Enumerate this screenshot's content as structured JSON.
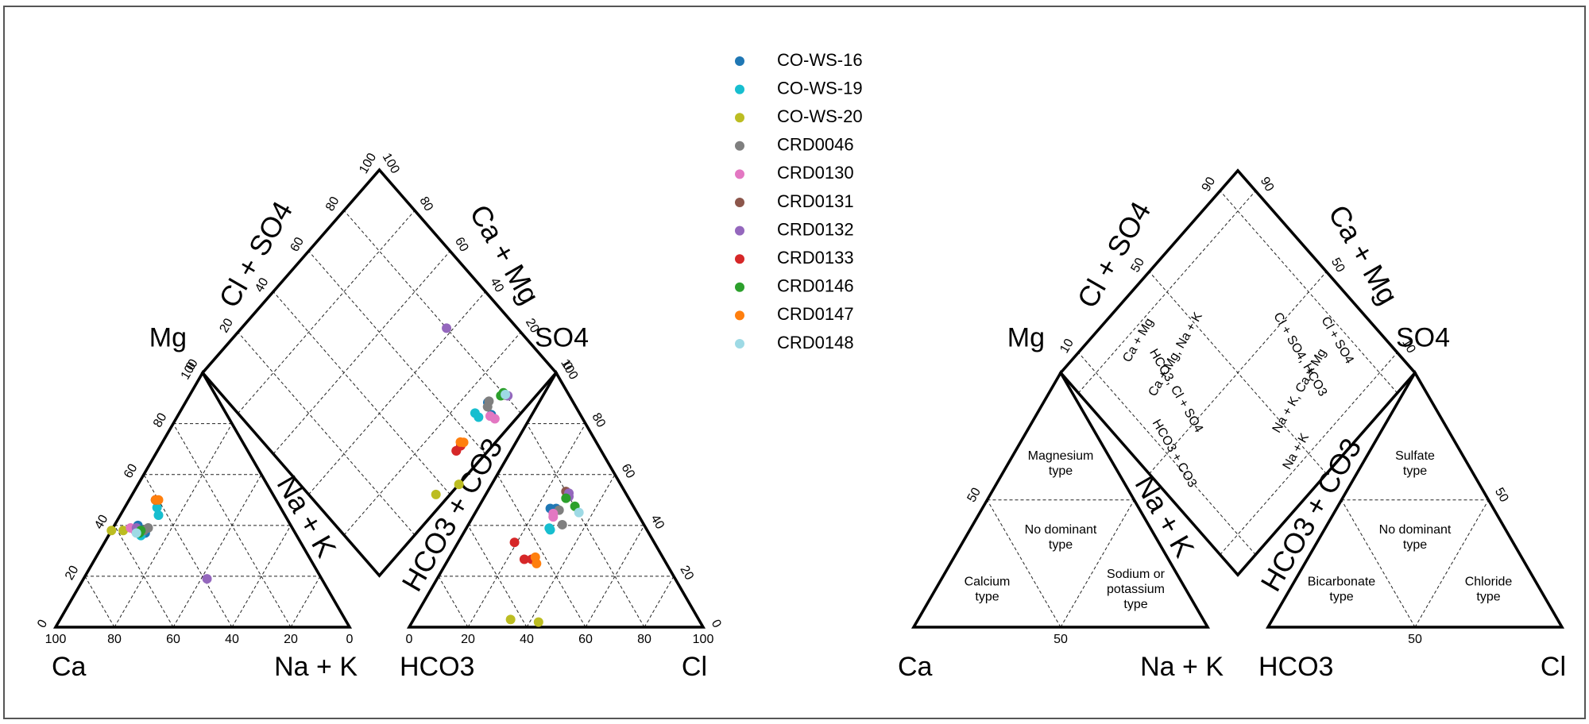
{
  "chart_data": [
    {
      "type": "scatter",
      "subtype": "piper-diagram",
      "title": "",
      "cation_triangle": {
        "corner_labels": {
          "left": "Ca",
          "right": "Na + K",
          "top": "Mg"
        },
        "side_label": "Na + K",
        "ticks_bottom": [
          "100",
          "80",
          "60",
          "40",
          "20",
          "0"
        ],
        "ticks_left": [
          "0",
          "20",
          "40",
          "60",
          "80",
          "100"
        ]
      },
      "anion_triangle": {
        "corner_labels": {
          "left": "HCO3",
          "right": "Cl",
          "top": "SO4"
        },
        "side_label": "HCO3 + CO3",
        "ticks_bottom": [
          "0",
          "20",
          "40",
          "60",
          "80",
          "100"
        ],
        "ticks_right": [
          "0",
          "20",
          "40",
          "60",
          "80",
          "100"
        ]
      },
      "diamond": {
        "left_label": "Cl + SO4",
        "right_label": "Ca + Mg",
        "ticks_left": [
          "0",
          "20",
          "40",
          "60",
          "80",
          "100"
        ],
        "ticks_right": [
          "0",
          "20",
          "40",
          "60",
          "80",
          "100"
        ]
      },
      "legend_placement": "top-center",
      "series": [
        {
          "name": "CO-WS-16",
          "color": "#1f77b4",
          "cations": [
            {
              "ca": 52,
              "mg": 40,
              "nak": 8
            },
            {
              "ca": 51,
              "mg": 37,
              "nak": 12
            }
          ],
          "anions": [
            {
              "hco3": 43,
              "so4": 70,
              "cl": 37
            },
            {
              "hco3": 40,
              "so4": 70,
              "cl": 40
            }
          ]
        },
        {
          "name": "CO-WS-19",
          "color": "#17becf",
          "cations": [
            {
              "ca": 42,
              "mg": 47,
              "nak": 11
            },
            {
              "ca": 43,
              "mg": 44,
              "nak": 13
            },
            {
              "ca": 53,
              "mg": 36,
              "nak": 11
            }
          ],
          "anions": [
            {
              "hco3": 49,
              "so4": 57,
              "cl": 43
            },
            {
              "hco3": 49,
              "so4": 58,
              "cl": 42
            }
          ]
        },
        {
          "name": "CO-WS-20",
          "color": "#bcbd22",
          "cations": [
            {
              "ca": 58,
              "mg": 38,
              "nak": 4
            },
            {
              "ca": 62,
              "mg": 38,
              "nak": 0
            }
          ],
          "anions": [
            {
              "hco3": 64,
              "so4": 3,
              "cl": 33
            },
            {
              "hco3": 55,
              "so4": 2,
              "cl": 43
            }
          ]
        },
        {
          "name": "CRD0046",
          "color": "#7f7f7f",
          "cations": [
            {
              "ca": 49,
              "mg": 39,
              "nak": 12
            },
            {
              "ca": 51,
              "mg": 38,
              "nak": 11
            }
          ],
          "anions": [
            {
              "hco3": 39,
              "so4": 69,
              "cl": 42
            },
            {
              "hco3": 40,
              "so4": 58,
              "cl": 46
            }
          ]
        },
        {
          "name": "CRD0130",
          "color": "#e377c2",
          "cations": [
            {
              "ca": 55,
              "mg": 39,
              "nak": 6
            },
            {
              "ca": 54,
              "mg": 38,
              "nak": 8
            }
          ],
          "anions": [
            {
              "hco3": 43,
              "so4": 67,
              "cl": 40
            },
            {
              "hco3": 44,
              "so4": 65,
              "cl": 41
            }
          ]
        },
        {
          "name": "CRD0131",
          "color": "#8c564b",
          "cations": [
            {
              "ca": 41,
              "mg": 50,
              "nak": 9
            }
          ],
          "anions": [
            {
              "hco3": 30,
              "so4": 80,
              "cl": 40
            }
          ]
        },
        {
          "name": "CRD0132",
          "color": "#9467bd",
          "cations": [
            {
              "ca": 53,
              "mg": 39,
              "nak": 8
            },
            {
              "ca": 39,
              "mg": 19,
              "nak": 42
            }
          ],
          "anions": [
            {
              "hco3": 29,
              "so4": 79,
              "cl": 42
            },
            {
              "hco3": 30,
              "so4": 77,
              "cl": 43
            }
          ]
        },
        {
          "name": "CRD0133",
          "color": "#d62728",
          "cations": [
            {
              "ca": 41,
              "mg": 50,
              "nak": 9
            }
          ],
          "anions": [
            {
              "hco3": 57,
              "so4": 40,
              "cl": 23
            },
            {
              "hco3": 57,
              "so4": 32,
              "cl": 31
            },
            {
              "hco3": 54,
              "so4": 32,
              "cl": 34
            }
          ]
        },
        {
          "name": "CRD0146",
          "color": "#2ca02c",
          "cations": [
            {
              "ca": 52,
              "mg": 38,
              "nak": 10
            },
            {
              "ca": 53,
              "mg": 37,
              "nak": 10
            }
          ],
          "anions": [
            {
              "hco3": 32,
              "so4": 76,
              "cl": 42
            },
            {
              "hco3": 28,
              "so4": 67,
              "cl": 46
            }
          ]
        },
        {
          "name": "CRD0147",
          "color": "#ff7f0e",
          "cations": [
            {
              "ca": 41,
              "mg": 50,
              "nak": 9
            },
            {
              "ca": 40,
              "mg": 50,
              "nak": 10
            }
          ],
          "anions": [
            {
              "hco3": 52,
              "so4": 33,
              "cl": 35
            },
            {
              "hco3": 53,
              "so4": 30,
              "cl": 37
            }
          ]
        },
        {
          "name": "CRD0148",
          "color": "#9edae5",
          "cations": [
            {
              "ca": 54,
              "mg": 37,
              "nak": 9
            }
          ],
          "anions": [
            {
              "hco3": 28,
              "so4": 64,
              "cl": 50
            }
          ]
        }
      ]
    },
    {
      "type": "diagram",
      "subtype": "piper-classification-template",
      "title": "",
      "corner_labels": {
        "cation_left": "Ca",
        "cation_right": "Na + K",
        "cation_top": "Mg",
        "anion_left": "HCO3",
        "anion_right": "Cl",
        "anion_top": "SO4"
      },
      "side_labels": {
        "cation": "Na + K",
        "anion": "HCO3 + CO3",
        "diamond_left": "Cl + SO4",
        "diamond_right": "Ca + Mg"
      },
      "ticks": {
        "cation_left_50": "50",
        "cation_bottom_50": "50",
        "anion_right_50": "50",
        "anion_bottom_50": "50",
        "diamond_left": [
          "10",
          "50",
          "90"
        ],
        "diamond_right": [
          "10",
          "50",
          "90"
        ]
      },
      "cation_zones": [
        [
          "Magnesium",
          "type"
        ],
        [
          "No dominant",
          "type"
        ],
        [
          "Calcium",
          "type"
        ],
        [
          "Sodium or",
          "potassium",
          "type"
        ]
      ],
      "anion_zones": [
        [
          "Sulfate",
          "type"
        ],
        [
          "No dominant",
          "type"
        ],
        [
          "Bicarbonate",
          "type"
        ],
        [
          "Chloride",
          "type"
        ]
      ],
      "diamond_zones": [
        "Ca + Mg",
        "Cl + SO4",
        "Ca + Mg, Na + K",
        "Cl + SO4, HCO3",
        "HCO3, Cl + SO4",
        "Na + K, Ca + Mg",
        "HCO3 + CO3",
        "Na + K"
      ]
    }
  ]
}
